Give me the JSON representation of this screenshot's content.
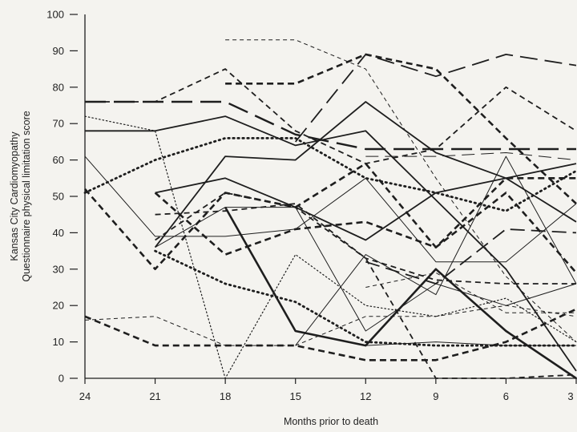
{
  "chart_data": {
    "type": "line",
    "title": "",
    "xlabel": "Months prior to death",
    "ylabel_lines": [
      "Kansas City Cardiomyopathy",
      "Questionnaire physical limitation score"
    ],
    "x": [
      24,
      21,
      18,
      15,
      12,
      9,
      6,
      3
    ],
    "x_tick_labels": [
      "24",
      "21",
      "18",
      "15",
      "12",
      "9",
      "6",
      "3"
    ],
    "xlim": [
      24,
      3
    ],
    "y_ticks": [
      0,
      10,
      20,
      30,
      40,
      50,
      60,
      70,
      80,
      90,
      100
    ],
    "y_tick_labels": [
      "0",
      "10",
      "20",
      "30",
      "40",
      "50",
      "60",
      "70",
      "80",
      "90",
      "100"
    ],
    "ylim": [
      0,
      100
    ],
    "grid": false,
    "legend": "none",
    "line_color": "#1e1e1e",
    "series": [
      {
        "style": "longdash-thick",
        "points": [
          [
            24,
            76
          ],
          [
            21,
            76
          ],
          [
            18,
            76
          ],
          [
            15,
            67
          ],
          [
            12,
            63
          ],
          [
            9,
            63
          ],
          [
            6,
            63
          ],
          [
            3,
            63
          ]
        ]
      },
      {
        "style": "dash-thick",
        "points": [
          [
            18,
            81
          ],
          [
            15,
            81
          ],
          [
            12,
            89
          ],
          [
            9,
            85
          ],
          [
            6,
            66
          ],
          [
            3,
            48
          ]
        ]
      },
      {
        "style": "longdash",
        "points": [
          [
            15,
            65
          ],
          [
            12,
            89
          ],
          [
            9,
            83
          ],
          [
            6,
            89
          ],
          [
            3,
            86
          ]
        ]
      },
      {
        "style": "dash-medium",
        "points": [
          [
            24,
            76
          ],
          [
            21,
            76
          ],
          [
            18,
            85
          ],
          [
            15,
            68
          ],
          [
            12,
            59
          ],
          [
            9,
            63
          ],
          [
            6,
            80
          ],
          [
            3,
            68
          ]
        ]
      },
      {
        "style": "dash-thin",
        "points": [
          [
            18,
            93
          ],
          [
            15,
            93
          ],
          [
            12,
            85
          ],
          [
            9,
            55
          ],
          [
            6,
            28
          ],
          [
            3,
            10
          ]
        ]
      },
      {
        "style": "solid-medium",
        "points": [
          [
            24,
            68
          ],
          [
            21,
            68
          ],
          [
            18,
            72
          ],
          [
            15,
            64
          ],
          [
            12,
            68
          ],
          [
            9,
            49
          ],
          [
            6,
            30
          ],
          [
            3,
            2
          ]
        ]
      },
      {
        "style": "solid-medium",
        "points": [
          [
            21,
            36
          ],
          [
            18,
            61
          ],
          [
            15,
            60
          ],
          [
            12,
            76
          ],
          [
            9,
            62
          ],
          [
            6,
            55
          ],
          [
            3,
            59
          ]
        ]
      },
      {
        "style": "solid-thin",
        "points": [
          [
            24,
            61
          ],
          [
            21,
            39
          ],
          [
            18,
            39
          ],
          [
            15,
            41
          ],
          [
            12,
            55
          ],
          [
            9,
            32
          ],
          [
            6,
            32
          ],
          [
            3,
            48
          ]
        ]
      },
      {
        "style": "solid-medium",
        "points": [
          [
            21,
            51
          ],
          [
            18,
            55
          ],
          [
            15,
            47
          ],
          [
            12,
            38
          ],
          [
            9,
            51
          ],
          [
            6,
            55
          ],
          [
            3,
            43
          ]
        ]
      },
      {
        "style": "solid-thick",
        "points": [
          [
            18,
            47
          ],
          [
            15,
            13
          ],
          [
            12,
            9
          ],
          [
            9,
            30
          ],
          [
            6,
            13
          ],
          [
            3,
            0
          ]
        ]
      },
      {
        "style": "dot-thick",
        "points": [
          [
            24,
            51
          ],
          [
            21,
            60
          ],
          [
            18,
            66
          ],
          [
            15,
            66
          ],
          [
            12,
            55
          ],
          [
            9,
            51
          ],
          [
            6,
            46
          ],
          [
            3,
            57
          ]
        ]
      },
      {
        "style": "dot-thick",
        "points": [
          [
            21,
            35
          ],
          [
            18,
            26
          ],
          [
            15,
            21
          ],
          [
            12,
            10
          ],
          [
            9,
            9
          ],
          [
            6,
            9
          ],
          [
            3,
            9
          ]
        ]
      },
      {
        "style": "dash-thick",
        "points": [
          [
            24,
            52
          ],
          [
            21,
            30
          ],
          [
            18,
            51
          ],
          [
            15,
            47
          ],
          [
            12,
            59
          ],
          [
            9,
            36
          ],
          [
            6,
            55
          ],
          [
            3,
            55
          ]
        ]
      },
      {
        "style": "dash-thick",
        "points": [
          [
            21,
            51
          ],
          [
            18,
            34
          ],
          [
            15,
            41
          ],
          [
            12,
            43
          ],
          [
            9,
            36
          ],
          [
            6,
            51
          ],
          [
            3,
            29
          ]
        ]
      },
      {
        "style": "dash-medium",
        "points": [
          [
            21,
            38
          ],
          [
            18,
            51
          ],
          [
            15,
            47
          ],
          [
            12,
            33
          ],
          [
            9,
            27
          ],
          [
            6,
            26
          ],
          [
            3,
            26
          ]
        ]
      },
      {
        "style": "dash-thick",
        "points": [
          [
            24,
            17
          ],
          [
            21,
            9
          ],
          [
            18,
            9
          ],
          [
            15,
            9
          ],
          [
            12,
            5
          ],
          [
            9,
            5
          ],
          [
            6,
            10
          ],
          [
            3,
            19
          ]
        ]
      },
      {
        "style": "dash-thin",
        "points": [
          [
            24,
            16
          ],
          [
            21,
            17
          ],
          [
            18,
            9
          ],
          [
            15,
            9
          ],
          [
            12,
            17
          ],
          [
            9,
            17
          ],
          [
            6,
            20
          ],
          [
            3,
            17
          ]
        ]
      },
      {
        "style": "dot-thin",
        "points": [
          [
            24,
            72
          ],
          [
            21,
            68
          ],
          [
            18,
            0
          ],
          [
            15,
            34
          ],
          [
            12,
            20
          ],
          [
            9,
            17
          ],
          [
            6,
            22
          ],
          [
            3,
            10
          ]
        ]
      },
      {
        "style": "solid-thin",
        "points": [
          [
            15,
            9
          ],
          [
            12,
            34
          ],
          [
            9,
            23
          ],
          [
            6,
            61
          ],
          [
            3,
            26
          ]
        ]
      },
      {
        "style": "solid-thin",
        "points": [
          [
            21,
            36
          ],
          [
            18,
            47
          ],
          [
            15,
            47
          ],
          [
            12,
            13
          ],
          [
            9,
            26
          ],
          [
            6,
            20
          ],
          [
            3,
            26
          ]
        ]
      },
      {
        "style": "longdash-thin",
        "points": [
          [
            12,
            61
          ],
          [
            9,
            61
          ],
          [
            6,
            62
          ],
          [
            3,
            60
          ]
        ]
      },
      {
        "style": "dash-medium",
        "points": [
          [
            21,
            45
          ],
          [
            18,
            46
          ],
          [
            15,
            48
          ],
          [
            12,
            33
          ],
          [
            9,
            0
          ],
          [
            6,
            0
          ],
          [
            3,
            1
          ]
        ]
      },
      {
        "style": "solid-thin",
        "points": [
          [
            12,
            9
          ],
          [
            9,
            10
          ],
          [
            6,
            9
          ],
          [
            3,
            9
          ]
        ]
      },
      {
        "style": "dash-thin",
        "points": [
          [
            12,
            25
          ],
          [
            9,
            29
          ],
          [
            6,
            18
          ],
          [
            3,
            18
          ]
        ]
      },
      {
        "style": "longdash-medium",
        "points": [
          [
            12,
            32
          ],
          [
            9,
            26
          ],
          [
            6,
            41
          ],
          [
            3,
            40
          ]
        ]
      }
    ]
  }
}
